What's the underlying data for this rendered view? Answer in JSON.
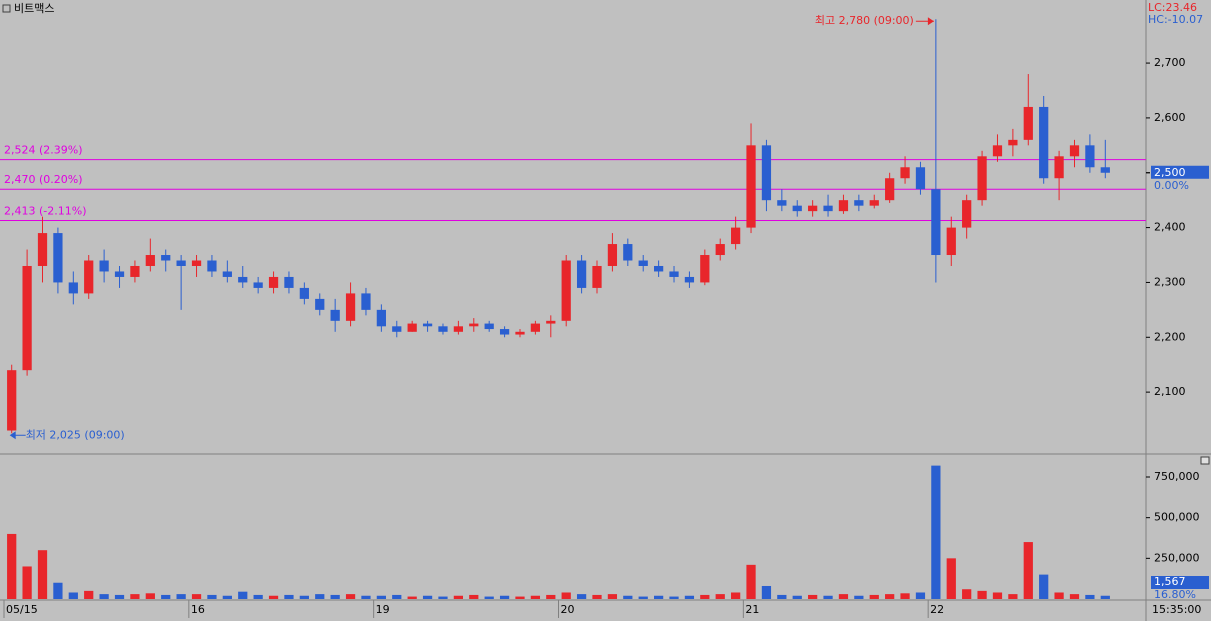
{
  "chart_data": {
    "type": "candlestick",
    "title": "비트맥스",
    "categories": [
      "05/15",
      null,
      null,
      null,
      null,
      null,
      null,
      null,
      null,
      null,
      null,
      null,
      "16",
      null,
      null,
      null,
      null,
      null,
      null,
      null,
      null,
      null,
      null,
      null,
      "19",
      null,
      null,
      null,
      null,
      null,
      null,
      null,
      null,
      null,
      null,
      null,
      "20",
      null,
      null,
      null,
      null,
      null,
      null,
      null,
      null,
      null,
      null,
      null,
      "21",
      null,
      null,
      null,
      null,
      null,
      null,
      null,
      null,
      null,
      null,
      null,
      "22",
      null,
      null,
      null,
      null,
      null,
      null,
      null,
      null,
      null,
      null,
      null
    ],
    "open": [
      2030,
      2140,
      2330,
      2390,
      2300,
      2280,
      2340,
      2320,
      2310,
      2330,
      2350,
      2340,
      2330,
      2340,
      2320,
      2310,
      2300,
      2290,
      2310,
      2290,
      2270,
      2250,
      2230,
      2280,
      2250,
      2220,
      2210,
      2225,
      2220,
      2210,
      2220,
      2225,
      2215,
      2205,
      2210,
      2225,
      2230,
      2340,
      2290,
      2330,
      2370,
      2340,
      2330,
      2320,
      2310,
      2300,
      2350,
      2370,
      2400,
      2550,
      2450,
      2440,
      2430,
      2440,
      2430,
      2450,
      2440,
      2450,
      2490,
      2510,
      2470,
      2350,
      2400,
      2450,
      2530,
      2550,
      2560,
      2620,
      2490,
      2530,
      2550,
      2510
    ],
    "high": [
      2150,
      2360,
      2420,
      2400,
      2320,
      2350,
      2360,
      2330,
      2340,
      2380,
      2360,
      2350,
      2350,
      2350,
      2340,
      2330,
      2310,
      2320,
      2320,
      2300,
      2280,
      2270,
      2300,
      2290,
      2260,
      2230,
      2230,
      2230,
      2225,
      2230,
      2235,
      2230,
      2220,
      2215,
      2230,
      2240,
      2350,
      2350,
      2340,
      2390,
      2380,
      2350,
      2340,
      2330,
      2320,
      2360,
      2380,
      2420,
      2590,
      2560,
      2470,
      2450,
      2450,
      2460,
      2460,
      2460,
      2460,
      2500,
      2530,
      2520,
      2780,
      2420,
      2460,
      2540,
      2570,
      2580,
      2680,
      2640,
      2540,
      2560,
      2570,
      2560
    ],
    "low": [
      2025,
      2130,
      2300,
      2280,
      2260,
      2270,
      2300,
      2290,
      2300,
      2320,
      2320,
      2250,
      2310,
      2310,
      2300,
      2290,
      2280,
      2280,
      2280,
      2260,
      2240,
      2210,
      2220,
      2240,
      2210,
      2200,
      2210,
      2210,
      2205,
      2205,
      2210,
      2210,
      2200,
      2200,
      2205,
      2200,
      2220,
      2280,
      2280,
      2320,
      2330,
      2320,
      2310,
      2300,
      2290,
      2295,
      2340,
      2360,
      2390,
      2430,
      2430,
      2420,
      2420,
      2420,
      2425,
      2430,
      2435,
      2445,
      2480,
      2460,
      2300,
      2330,
      2380,
      2440,
      2520,
      2530,
      2550,
      2480,
      2450,
      2510,
      2500,
      2490
    ],
    "close": [
      2140,
      2330,
      2390,
      2300,
      2280,
      2340,
      2320,
      2310,
      2330,
      2350,
      2340,
      2330,
      2340,
      2320,
      2310,
      2300,
      2290,
      2310,
      2290,
      2270,
      2250,
      2230,
      2280,
      2250,
      2220,
      2210,
      2225,
      2220,
      2210,
      2220,
      2225,
      2215,
      2205,
      2210,
      2225,
      2230,
      2340,
      2290,
      2330,
      2370,
      2340,
      2330,
      2320,
      2310,
      2300,
      2350,
      2370,
      2400,
      2550,
      2450,
      2440,
      2430,
      2440,
      2430,
      2450,
      2440,
      2450,
      2490,
      2510,
      2470,
      2350,
      2400,
      2450,
      2530,
      2550,
      2560,
      2620,
      2490,
      2530,
      2550,
      2510,
      2500
    ],
    "up_color": "#e8262b",
    "down_color": "#2a5fd0",
    "ylim": [
      1989,
      2815
    ],
    "yticks": [
      {
        "value": 2100,
        "label": "2,100"
      },
      {
        "value": 2200,
        "label": "2,200"
      },
      {
        "value": 2300,
        "label": "2,300"
      },
      {
        "value": 2400,
        "label": "2,400"
      },
      {
        "value": 2500,
        "label": "2,500"
      },
      {
        "value": 2600,
        "label": "2,600"
      },
      {
        "value": 2700,
        "label": "2,700"
      }
    ],
    "levels": [
      {
        "value": 2524,
        "label": "2,524 (2.39%)"
      },
      {
        "value": 2470,
        "label": "2,470 (0.20%)"
      },
      {
        "value": 2413,
        "label": "2,413 (-2.11%)"
      }
    ],
    "level_color": "#e000e0",
    "annotations": {
      "high": "최고 2,780 (09:00)",
      "low": "최저 2,025 (09:00)"
    },
    "indicators": {
      "lc": "LC:23.46",
      "hc": "HC:-10.07"
    },
    "last_price": {
      "value": 2500,
      "label": "2,500"
    },
    "last_change": "0.00%",
    "volume": {
      "type": "bar",
      "values": [
        400000,
        200000,
        300000,
        100000,
        40000,
        50000,
        30000,
        25000,
        30000,
        35000,
        25000,
        30000,
        30000,
        25000,
        20000,
        45000,
        25000,
        20000,
        25000,
        20000,
        30000,
        25000,
        30000,
        20000,
        20000,
        25000,
        15000,
        20000,
        15000,
        20000,
        25000,
        15000,
        20000,
        15000,
        20000,
        25000,
        40000,
        30000,
        25000,
        30000,
        20000,
        15000,
        20000,
        15000,
        20000,
        25000,
        30000,
        40000,
        210000,
        80000,
        25000,
        20000,
        25000,
        20000,
        30000,
        20000,
        25000,
        30000,
        35000,
        40000,
        820000,
        250000,
        60000,
        50000,
        40000,
        30000,
        350000,
        150000,
        40000,
        30000,
        25000,
        20000
      ],
      "ylim": [
        0,
        873000
      ],
      "yticks": [
        {
          "value": 250000,
          "label": "250,000"
        },
        {
          "value": 500000,
          "label": "500,000"
        },
        {
          "value": 750000,
          "label": "750,000"
        }
      ],
      "last": "1,567",
      "ratio": "16.80%"
    },
    "time": "15:35:00"
  }
}
